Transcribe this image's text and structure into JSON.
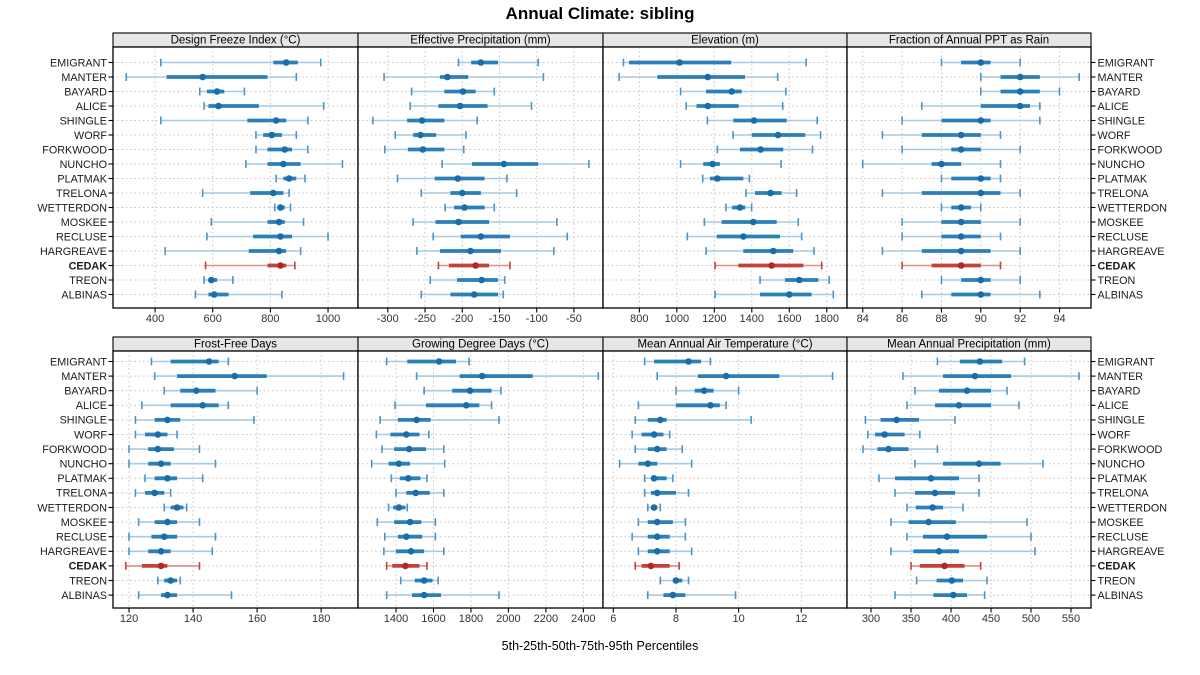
{
  "title": "Annual Climate: sibling",
  "footer": "5th-25th-50th-75th-95th Percentiles",
  "stations": [
    "EMIGRANT",
    "MANTER",
    "BAYARD",
    "ALICE",
    "SHINGLE",
    "WORF",
    "FORKWOOD",
    "NUNCHO",
    "PLATMAK",
    "TRELONA",
    "WETTERDON",
    "MOSKEE",
    "RECLUSE",
    "HARGREAVE",
    "CEDAK",
    "TREON",
    "ALBINAS"
  ],
  "highlight_station": "CEDAK",
  "colors": {
    "blue_dot": "#1a6da8",
    "blue_thick": "#2d7fb8",
    "blue_thin": "#a7cbe2",
    "blue_cap": "#4e92c6",
    "red_dot": "#ae2a22",
    "red_thick": "#c2423c",
    "red_thin": "#dc9089",
    "red_cap": "#c2423c",
    "grid": "#c4c4c4",
    "strip_bg": "#e6e6e6",
    "border": "#000000",
    "tick_label": "#333333",
    "station_label": "#1a1a1a"
  },
  "chart_data": {
    "type": "table",
    "subtype": "trellis-percentile-dotplot",
    "layout": "2 rows x 4 columns of panels, shared station category axis",
    "percentile_labels": [
      "5th",
      "25th",
      "50th",
      "75th",
      "95th"
    ],
    "panels": [
      {
        "title": "Design Freeze Index (°C)",
        "row": 0,
        "col": 0,
        "ticks": [
          400,
          600,
          800,
          1000
        ],
        "domain": [
          254,
          1104
        ],
        "values": [
          [
            420,
            810,
            855,
            895,
            975
          ],
          [
            300,
            440,
            565,
            790,
            890
          ],
          [
            555,
            580,
            615,
            640,
            710
          ],
          [
            570,
            585,
            620,
            760,
            985
          ],
          [
            420,
            720,
            820,
            855,
            930
          ],
          [
            750,
            775,
            805,
            840,
            890
          ],
          [
            750,
            790,
            850,
            875,
            930
          ],
          [
            715,
            790,
            845,
            905,
            1050
          ],
          [
            820,
            845,
            865,
            890,
            920
          ],
          [
            565,
            730,
            810,
            845,
            865
          ],
          [
            815,
            825,
            835,
            850,
            870
          ],
          [
            595,
            790,
            830,
            850,
            915
          ],
          [
            580,
            740,
            835,
            875,
            1000
          ],
          [
            435,
            725,
            830,
            855,
            905
          ],
          [
            575,
            790,
            835,
            855,
            885
          ],
          [
            570,
            585,
            595,
            615,
            670
          ],
          [
            540,
            585,
            605,
            655,
            840
          ]
        ]
      },
      {
        "title": "Effective Precipitation (mm)",
        "row": 0,
        "col": 1,
        "ticks": [
          -300,
          -250,
          -200,
          -150,
          -100,
          -50
        ],
        "domain": [
          -340,
          -11
        ],
        "values": [
          [
            -205,
            -188,
            -175,
            -152,
            -98
          ],
          [
            -305,
            -230,
            -220,
            -192,
            -91
          ],
          [
            -268,
            -224,
            -199,
            -182,
            -157
          ],
          [
            -270,
            -232,
            -203,
            -166,
            -107
          ],
          [
            -320,
            -274,
            -254,
            -224,
            -180
          ],
          [
            -290,
            -266,
            -256,
            -235,
            -195
          ],
          [
            -304,
            -273,
            -253,
            -224,
            -198
          ],
          [
            -227,
            -187,
            -144,
            -98,
            -30
          ],
          [
            -287,
            -237,
            -206,
            -170,
            -140
          ],
          [
            -255,
            -216,
            -200,
            -175,
            -127
          ],
          [
            -223,
            -211,
            -197,
            -170,
            -157
          ],
          [
            -266,
            -236,
            -205,
            -164,
            -73
          ],
          [
            -239,
            -202,
            -175,
            -136,
            -59
          ],
          [
            -261,
            -230,
            -189,
            -148,
            -77
          ],
          [
            -232,
            -218,
            -182,
            -164,
            -136
          ],
          [
            -243,
            -207,
            -174,
            -152,
            -143
          ],
          [
            -255,
            -216,
            -184,
            -152,
            -145
          ]
        ]
      },
      {
        "title": "Elevation (m)",
        "row": 0,
        "col": 2,
        "ticks": [
          800,
          1000,
          1200,
          1400,
          1600,
          1800
        ],
        "domain": [
          606,
          1908
        ],
        "values": [
          [
            715,
            745,
            1015,
            1290,
            1690
          ],
          [
            692,
            896,
            1165,
            1364,
            1538
          ],
          [
            1020,
            1156,
            1293,
            1346,
            1582
          ],
          [
            1050,
            1105,
            1165,
            1330,
            1565
          ],
          [
            1163,
            1301,
            1412,
            1586,
            1749
          ],
          [
            1300,
            1400,
            1540,
            1685,
            1767
          ],
          [
            1216,
            1337,
            1447,
            1568,
            1724
          ],
          [
            1020,
            1141,
            1191,
            1230,
            1556
          ],
          [
            1138,
            1177,
            1216,
            1355,
            1387
          ],
          [
            1369,
            1417,
            1500,
            1559,
            1639
          ],
          [
            1262,
            1295,
            1337,
            1365,
            1399
          ],
          [
            1147,
            1239,
            1408,
            1533,
            1648
          ],
          [
            1056,
            1213,
            1355,
            1550,
            1666
          ],
          [
            1156,
            1355,
            1515,
            1621,
            1732
          ],
          [
            1204,
            1328,
            1506,
            1675,
            1773
          ],
          [
            1444,
            1577,
            1653,
            1755,
            1813
          ],
          [
            1204,
            1444,
            1600,
            1719,
            1835
          ]
        ]
      },
      {
        "title": "Fraction of Annual PPT as Rain",
        "row": 0,
        "col": 3,
        "ticks": [
          84,
          86,
          88,
          90,
          92,
          94
        ],
        "domain": [
          83.2,
          95.6
        ],
        "values": [
          [
            88,
            89,
            90,
            90.5,
            92
          ],
          [
            90,
            91,
            92,
            93,
            95
          ],
          [
            90,
            91,
            92,
            93,
            94
          ],
          [
            87,
            90,
            92,
            92.5,
            93
          ],
          [
            86,
            88,
            90,
            90.5,
            93
          ],
          [
            85,
            87,
            89,
            90,
            91
          ],
          [
            86,
            88.5,
            89,
            90,
            92
          ],
          [
            84,
            87.5,
            88,
            89,
            91
          ],
          [
            88,
            88.5,
            90,
            90.5,
            91
          ],
          [
            85,
            87,
            90,
            91,
            92
          ],
          [
            88,
            88.5,
            89,
            89.5,
            90
          ],
          [
            86,
            88,
            89,
            90,
            92
          ],
          [
            86,
            88,
            89,
            90,
            91
          ],
          [
            85,
            87,
            89,
            90.5,
            92
          ],
          [
            86,
            87.5,
            89,
            90,
            91
          ],
          [
            88,
            89,
            90,
            90.5,
            92
          ],
          [
            87,
            88.5,
            90,
            90.5,
            93
          ]
        ]
      },
      {
        "title": "Frost-Free Days",
        "row": 1,
        "col": 0,
        "ticks": [
          120,
          140,
          160,
          180
        ],
        "domain": [
          115,
          191.5
        ],
        "values": [
          [
            127,
            133,
            145,
            148,
            151
          ],
          [
            128,
            135,
            153,
            163,
            187
          ],
          [
            131,
            136,
            141,
            147,
            160
          ],
          [
            124,
            133,
            143,
            148,
            151
          ],
          [
            122,
            128,
            132,
            136,
            159
          ],
          [
            122,
            125,
            129,
            132,
            135
          ],
          [
            120,
            126,
            129,
            134,
            142
          ],
          [
            120,
            126,
            130,
            133,
            147
          ],
          [
            125,
            128,
            132,
            135,
            143
          ],
          [
            122,
            125,
            128,
            131,
            133
          ],
          [
            131,
            133,
            135,
            137,
            138
          ],
          [
            123,
            128,
            132,
            135,
            142
          ],
          [
            120,
            127,
            131,
            135,
            147
          ],
          [
            120,
            126,
            130,
            133,
            146
          ],
          [
            119,
            124,
            130,
            132,
            142
          ],
          [
            129,
            131,
            133,
            135,
            136
          ],
          [
            123,
            130,
            132,
            135,
            152
          ]
        ]
      },
      {
        "title": "Growing Degree Days (°C)",
        "row": 1,
        "col": 1,
        "ticks": [
          1400,
          1600,
          1800,
          2000,
          2200,
          2400
        ],
        "domain": [
          1197,
          2505
        ],
        "values": [
          [
            1350,
            1460,
            1630,
            1720,
            1790
          ],
          [
            1510,
            1740,
            1860,
            2130,
            2480
          ],
          [
            1550,
            1700,
            1795,
            1910,
            1960
          ],
          [
            1395,
            1560,
            1775,
            1845,
            1910
          ],
          [
            1315,
            1410,
            1510,
            1585,
            1950
          ],
          [
            1295,
            1370,
            1455,
            1525,
            1575
          ],
          [
            1325,
            1390,
            1470,
            1560,
            1655
          ],
          [
            1270,
            1360,
            1415,
            1475,
            1660
          ],
          [
            1375,
            1420,
            1465,
            1530,
            1565
          ],
          [
            1400,
            1455,
            1505,
            1580,
            1655
          ],
          [
            1360,
            1385,
            1415,
            1450,
            1460
          ],
          [
            1300,
            1390,
            1475,
            1535,
            1610
          ],
          [
            1340,
            1410,
            1455,
            1540,
            1610
          ],
          [
            1335,
            1400,
            1480,
            1550,
            1655
          ],
          [
            1350,
            1380,
            1450,
            1525,
            1565
          ],
          [
            1425,
            1500,
            1550,
            1595,
            1625
          ],
          [
            1350,
            1485,
            1550,
            1640,
            1950
          ]
        ]
      },
      {
        "title": "Mean Annual Air Temperature (°C)",
        "row": 1,
        "col": 2,
        "ticks": [
          6,
          8,
          10,
          12
        ],
        "domain": [
          5.67,
          13.46
        ],
        "values": [
          [
            7.0,
            7.3,
            8.4,
            8.8,
            9.1
          ],
          [
            7.4,
            8.7,
            9.6,
            11.3,
            13.0
          ],
          [
            8.0,
            8.6,
            8.9,
            9.2,
            10.0
          ],
          [
            6.8,
            8.0,
            9.1,
            9.4,
            9.6
          ],
          [
            6.7,
            7.1,
            7.5,
            7.7,
            10.4
          ],
          [
            6.6,
            6.9,
            7.3,
            7.6,
            7.8
          ],
          [
            6.7,
            7.1,
            7.4,
            7.7,
            8.2
          ],
          [
            6.2,
            6.8,
            7.1,
            7.4,
            8.5
          ],
          [
            7.0,
            7.2,
            7.3,
            7.7,
            7.9
          ],
          [
            7.0,
            7.2,
            7.4,
            8.0,
            8.4
          ],
          [
            7.1,
            7.2,
            7.3,
            7.4,
            7.5
          ],
          [
            6.8,
            7.1,
            7.4,
            7.9,
            8.3
          ],
          [
            6.6,
            7.1,
            7.4,
            7.8,
            8.3
          ],
          [
            6.8,
            7.1,
            7.4,
            7.8,
            8.5
          ],
          [
            6.7,
            6.9,
            7.2,
            7.8,
            8.1
          ],
          [
            7.5,
            7.9,
            8.0,
            8.2,
            8.4
          ],
          [
            7.1,
            7.6,
            7.9,
            8.3,
            9.9
          ]
        ]
      },
      {
        "title": "Mean Annual Precipitation (mm)",
        "row": 1,
        "col": 3,
        "ticks": [
          300,
          350,
          400,
          450,
          500,
          550
        ],
        "domain": [
          270,
          575
        ],
        "values": [
          [
            383,
            411,
            436,
            464,
            492
          ],
          [
            340,
            390,
            430,
            475,
            560
          ],
          [
            355,
            385,
            420,
            450,
            470
          ],
          [
            345,
            380,
            410,
            450,
            485
          ],
          [
            293,
            312,
            332,
            360,
            405
          ],
          [
            296,
            305,
            317,
            342,
            361
          ],
          [
            290,
            308,
            322,
            347,
            383
          ],
          [
            355,
            390,
            435,
            462,
            515
          ],
          [
            310,
            330,
            375,
            410,
            435
          ],
          [
            330,
            355,
            380,
            405,
            435
          ],
          [
            345,
            356,
            377,
            390,
            415
          ],
          [
            325,
            347,
            372,
            406,
            495
          ],
          [
            345,
            365,
            395,
            445,
            500
          ],
          [
            325,
            353,
            385,
            410,
            505
          ],
          [
            350,
            361,
            392,
            417,
            437
          ],
          [
            357,
            382,
            401,
            415,
            445
          ],
          [
            330,
            378,
            403,
            420,
            442
          ]
        ]
      }
    ]
  }
}
